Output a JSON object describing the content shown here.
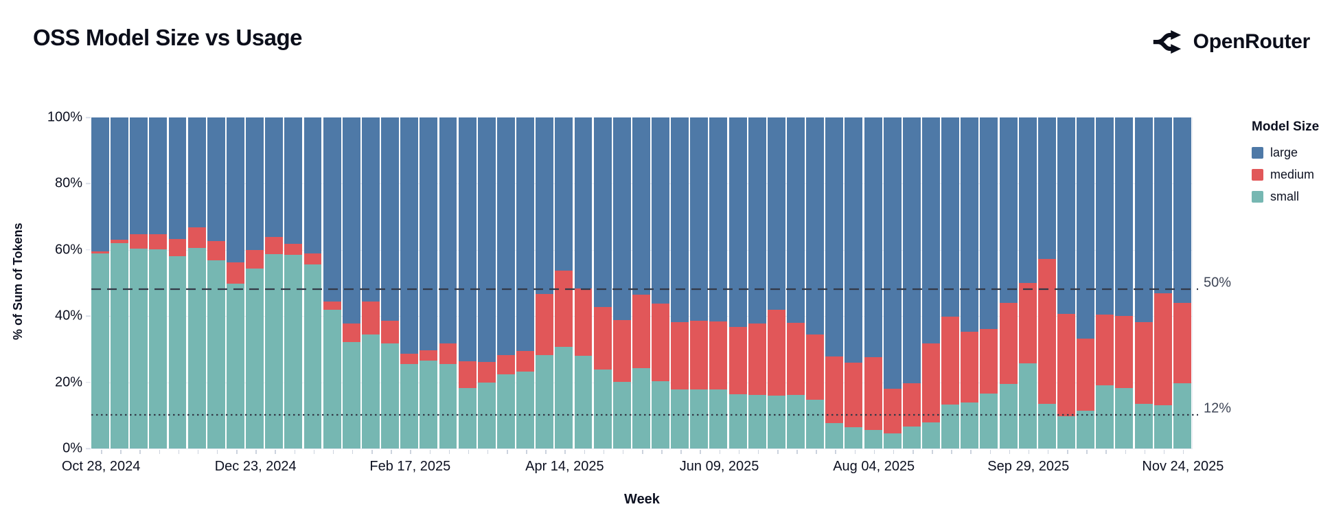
{
  "header": {
    "title": "OSS Model Size vs Usage",
    "logo_text": "OpenRouter"
  },
  "chart_data": {
    "type": "bar",
    "stacked": true,
    "normalized_percent": true,
    "title": "OSS Model Size vs Usage",
    "x_title": "Week",
    "y_title": "% of Sum of Tokens",
    "ylim": [
      0,
      100
    ],
    "grid_values": [
      20,
      40,
      60,
      80
    ],
    "y_ticks": [
      {
        "value": 0,
        "label": "0%"
      },
      {
        "value": 20,
        "label": "20%"
      },
      {
        "value": 40,
        "label": "40%"
      },
      {
        "value": 60,
        "label": "60%"
      },
      {
        "value": 80,
        "label": "80%"
      },
      {
        "value": 100,
        "label": "100%"
      }
    ],
    "x_tick_labels": [
      {
        "index": 0,
        "label": "Oct 28, 2024"
      },
      {
        "index": 8,
        "label": "Dec 23, 2024"
      },
      {
        "index": 16,
        "label": "Feb 17, 2025"
      },
      {
        "index": 24,
        "label": "Apr 14, 2025"
      },
      {
        "index": 32,
        "label": "Jun 09, 2025"
      },
      {
        "index": 40,
        "label": "Aug 04, 2025"
      },
      {
        "index": 48,
        "label": "Sep 29, 2025"
      },
      {
        "index": 56,
        "label": "Nov 24, 2025"
      }
    ],
    "weeks": [
      "Oct 28, 2024",
      "Nov 04, 2024",
      "Nov 11, 2024",
      "Nov 18, 2024",
      "Nov 25, 2024",
      "Dec 02, 2024",
      "Dec 09, 2024",
      "Dec 16, 2024",
      "Dec 23, 2024",
      "Dec 30, 2024",
      "Jan 06, 2025",
      "Jan 13, 2025",
      "Jan 20, 2025",
      "Jan 27, 2025",
      "Feb 03, 2025",
      "Feb 10, 2025",
      "Feb 17, 2025",
      "Feb 24, 2025",
      "Mar 03, 2025",
      "Mar 10, 2025",
      "Mar 17, 2025",
      "Mar 24, 2025",
      "Mar 31, 2025",
      "Apr 07, 2025",
      "Apr 14, 2025",
      "Apr 21, 2025",
      "Apr 28, 2025",
      "May 05, 2025",
      "May 12, 2025",
      "May 19, 2025",
      "May 26, 2025",
      "Jun 02, 2025",
      "Jun 09, 2025",
      "Jun 16, 2025",
      "Jun 23, 2025",
      "Jun 30, 2025",
      "Jul 07, 2025",
      "Jul 14, 2025",
      "Jul 21, 2025",
      "Jul 28, 2025",
      "Aug 04, 2025",
      "Aug 11, 2025",
      "Aug 18, 2025",
      "Aug 25, 2025",
      "Sep 01, 2025",
      "Sep 08, 2025",
      "Sep 15, 2025",
      "Sep 22, 2025",
      "Sep 29, 2025",
      "Oct 06, 2025",
      "Oct 13, 2025",
      "Oct 20, 2025",
      "Oct 27, 2025",
      "Nov 03, 2025",
      "Nov 10, 2025",
      "Nov 17, 2025",
      "Nov 24, 2025"
    ],
    "series": [
      {
        "name": "small",
        "color": "#76b7b2",
        "values": [
          59.0,
          62.0,
          60.4,
          60.2,
          58.0,
          60.6,
          56.8,
          49.8,
          54.4,
          58.8,
          58.5,
          55.5,
          42.0,
          32.2,
          34.5,
          31.7,
          25.6,
          26.5,
          25.6,
          18.3,
          19.9,
          22.4,
          23.3,
          28.3,
          30.6,
          28.1,
          23.8,
          20.2,
          24.2,
          20.4,
          17.9,
          17.9,
          17.8,
          16.4,
          16.2,
          16.0,
          16.2,
          14.7,
          7.6,
          6.5,
          5.7,
          4.5,
          6.6,
          7.8,
          13.3,
          13.9,
          16.6,
          19.4,
          25.8,
          13.4,
          9.8,
          11.5,
          19.1,
          18.2,
          13.5,
          13.0,
          19.8
        ]
      },
      {
        "name": "medium",
        "color": "#e15759",
        "values": [
          0.5,
          1.0,
          4.3,
          4.6,
          5.2,
          6.2,
          5.8,
          6.4,
          5.6,
          5.2,
          3.3,
          3.5,
          2.5,
          5.5,
          9.8,
          6.9,
          3.1,
          3.2,
          6.2,
          8.0,
          6.2,
          5.9,
          6.2,
          18.3,
          23.1,
          20.3,
          18.9,
          18.6,
          22.3,
          23.4,
          20.2,
          20.7,
          20.6,
          20.3,
          21.5,
          26.0,
          21.7,
          19.8,
          20.2,
          19.5,
          21.8,
          13.6,
          13.1,
          24.0,
          26.6,
          21.3,
          19.5,
          24.5,
          24.2,
          43.8,
          30.9,
          21.7,
          21.4,
          21.8,
          24.7,
          33.8,
          24.2
        ]
      },
      {
        "name": "large",
        "color": "#4e79a7",
        "values": [
          40.5,
          37.0,
          35.3,
          35.2,
          36.8,
          33.2,
          37.4,
          43.8,
          40.0,
          36.0,
          38.2,
          41.0,
          55.5,
          62.3,
          55.7,
          61.4,
          71.3,
          70.3,
          68.2,
          73.7,
          73.9,
          71.7,
          70.5,
          53.4,
          46.3,
          51.6,
          57.3,
          61.2,
          53.5,
          56.2,
          61.9,
          61.4,
          61.6,
          63.3,
          62.3,
          58.0,
          62.1,
          65.5,
          72.2,
          74.0,
          72.5,
          81.9,
          80.3,
          68.2,
          60.1,
          64.8,
          63.9,
          56.1,
          50.0,
          42.8,
          59.3,
          66.8,
          59.5,
          60.0,
          61.8,
          53.2,
          56.2
        ]
      }
    ],
    "annotations": [
      {
        "label": "50%",
        "value": 50,
        "style": "dashed"
      },
      {
        "label": "12%",
        "value": 12,
        "style": "dotted"
      }
    ],
    "legend": {
      "title": "Model Size",
      "position": "right",
      "items": [
        {
          "label": "large",
          "color": "#4e79a7"
        },
        {
          "label": "medium",
          "color": "#e15759"
        },
        {
          "label": "small",
          "color": "#76b7b2"
        }
      ]
    },
    "colors": {
      "line": "#333947",
      "grid": "#e9ecf3",
      "axis_text": "#0c1020"
    }
  }
}
